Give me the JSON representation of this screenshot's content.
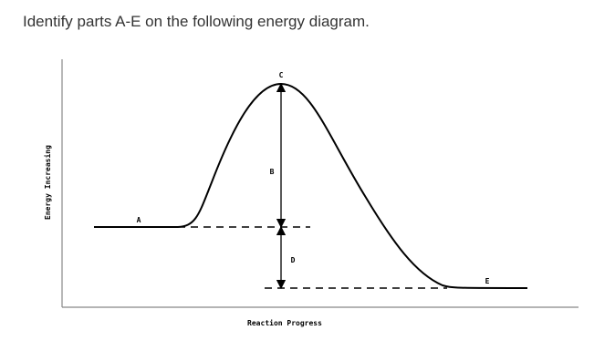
{
  "question": "Identify parts A-E on the following energy diagram.",
  "diagram": {
    "y_label": "Energy Increasing",
    "x_label": "Reaction Progress",
    "labels": [
      "A",
      "B",
      "C",
      "D",
      "E"
    ]
  }
}
